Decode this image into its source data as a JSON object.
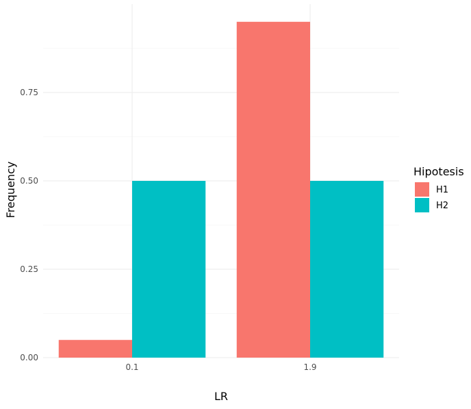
{
  "chart_data": {
    "type": "bar",
    "title": "",
    "xlabel": "LR",
    "ylabel": "Frequency",
    "categories": [
      "0.1",
      "1.9"
    ],
    "series": [
      {
        "name": "H1",
        "color": "#F8766D",
        "values": [
          0.05,
          0.95
        ]
      },
      {
        "name": "H2",
        "color": "#00BFC4",
        "values": [
          0.5,
          0.5
        ]
      }
    ],
    "ylim": [
      0,
      1
    ],
    "yticks": [
      0,
      0.25,
      0.5,
      0.75
    ],
    "ytick_labels": [
      "0.00",
      "0.25",
      "0.50",
      "0.75"
    ],
    "grid": true,
    "legend": {
      "title": "Hipotesis",
      "position": "right"
    }
  }
}
